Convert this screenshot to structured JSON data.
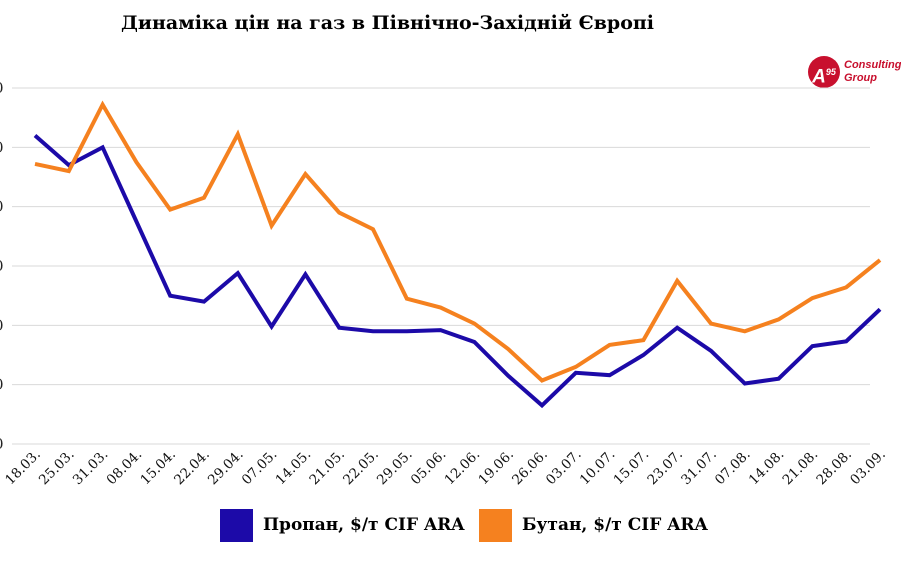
{
  "chart_data": {
    "type": "line",
    "title": "Динаміка цін на газ в Північно-Західній Європі",
    "categories": [
      "18.03.",
      "25.03.",
      "31.03.",
      "08.04.",
      "15.04.",
      "22.04.",
      "29.04.",
      "07.05.",
      "14.05.",
      "21.05.",
      "22.05.",
      "29.05.",
      "05.06.",
      "12.06.",
      "19.06.",
      "26.06.",
      "03.07.",
      "10.07.",
      "15.07.",
      "23.07.",
      "31.07.",
      "07.08.",
      "14.08.",
      "21.08.",
      "28.08.",
      "03.09."
    ],
    "series": [
      {
        "name": "Пропан, $/т CIF ARA",
        "color": "#1c0aa8",
        "values": [
          5.2,
          4.7,
          5.0,
          3.75,
          2.5,
          2.4,
          2.88,
          1.98,
          2.86,
          1.96,
          1.9,
          1.9,
          1.92,
          1.72,
          1.15,
          0.65,
          1.2,
          1.16,
          1.5,
          1.96,
          1.57,
          1.02,
          1.1,
          1.65,
          1.73,
          2.27
        ]
      },
      {
        "name": "Бутан, $/т CIF ARA",
        "color": "#f5811f",
        "values": [
          4.72,
          4.6,
          5.72,
          4.75,
          3.95,
          4.15,
          5.22,
          3.68,
          4.55,
          3.9,
          3.62,
          2.45,
          2.3,
          2.03,
          1.6,
          1.07,
          1.3,
          1.67,
          1.75,
          2.75,
          2.03,
          1.9,
          2.1,
          2.46,
          2.64,
          3.1
        ]
      }
    ],
    "ylim": [
      0,
      6
    ],
    "ytick_count": 7,
    "grid": true,
    "legend_position": "bottom"
  },
  "logo": {
    "mark": "A",
    "sup": "95",
    "line1": "Consulting",
    "line2": "Group"
  }
}
